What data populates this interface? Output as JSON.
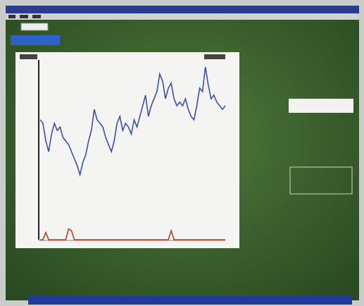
{
  "chart_data": {
    "type": "line",
    "ylim": [
      0,
      100
    ],
    "series": [
      {
        "color": "#3a4fa8",
        "values": [
          66.7,
          64.7,
          54.9,
          49,
          58.8,
          64.7,
          60.8,
          62.7,
          56.9,
          54.9,
          52.9,
          49,
          45.1,
          41.2,
          36.1,
          43.1,
          47.1,
          54.9,
          60.8,
          72.5,
          66.7,
          64.7,
          62.7,
          56.9,
          52.9,
          49,
          54.9,
          64.7,
          68.6,
          60.8,
          64.7,
          62.7,
          58.8,
          66.7,
          62.7,
          68.6,
          74.5,
          80.4,
          68.6,
          74.5,
          78.4,
          82.4,
          92.2,
          88.2,
          78.4,
          84.3,
          87.1,
          78.4,
          74.5,
          76.5,
          74.5,
          78.4,
          72.5,
          68.6,
          66.7,
          74.5,
          84.3,
          82.4,
          96.1,
          86.3,
          78.4,
          80.4,
          76.5,
          74.5,
          72.5,
          74.5
        ]
      },
      {
        "color": "#c0392b",
        "values": [
          0,
          0,
          4,
          0,
          0,
          0,
          0,
          0,
          0,
          0,
          6,
          5,
          0,
          0,
          0,
          0,
          0,
          0,
          0,
          0,
          0,
          0,
          0,
          0,
          0,
          0,
          0,
          0,
          0,
          0,
          0,
          0,
          0,
          0,
          0,
          0,
          0,
          0,
          0,
          0,
          0,
          0,
          0,
          0,
          0,
          0,
          5,
          0,
          0,
          0,
          0,
          0,
          0,
          0,
          0,
          0,
          0,
          0,
          0,
          0,
          0,
          0,
          0,
          0,
          0,
          0
        ]
      }
    ]
  }
}
